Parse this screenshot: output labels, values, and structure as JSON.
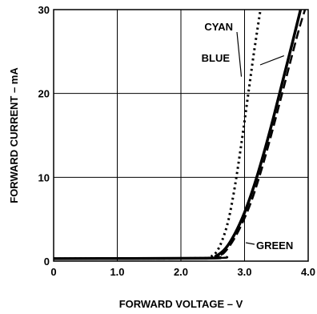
{
  "chart_data": {
    "type": "line",
    "xlabel": "FORWARD VOLTAGE – V",
    "ylabel": "FORWARD CURRENT – mA",
    "xlim": [
      0,
      4.0
    ],
    "ylim": [
      0,
      30
    ],
    "x_ticks": [
      "0",
      "1.0",
      "2.0",
      "3.0",
      "4.0"
    ],
    "y_ticks": [
      "0",
      "10",
      "20",
      "30"
    ],
    "grid": true,
    "legend": "inline labels with leader lines",
    "series": [
      {
        "name": "CYAN",
        "style": "dotted",
        "x": [
          0,
          2.3,
          2.45,
          2.55,
          2.65,
          2.75,
          2.85,
          2.95,
          3.05,
          3.15,
          3.25
        ],
        "y": [
          0.3,
          0.35,
          0.5,
          1.0,
          2.5,
          5.0,
          9.0,
          14.0,
          19.5,
          25.0,
          30.0
        ]
      },
      {
        "name": "BLUE",
        "style": "solid",
        "x": [
          0,
          2.4,
          2.55,
          2.7,
          2.85,
          3.0,
          3.15,
          3.3,
          3.45,
          3.6,
          3.75,
          3.88
        ],
        "y": [
          0.3,
          0.35,
          0.6,
          1.5,
          3.3,
          5.8,
          9.0,
          12.8,
          17.0,
          21.5,
          26.0,
          30.0
        ]
      },
      {
        "name": "GREEN",
        "style": "dashed",
        "x": [
          0,
          2.5,
          2.65,
          2.8,
          2.95,
          3.1,
          3.25,
          3.4,
          3.55,
          3.7,
          3.85,
          3.95
        ],
        "y": [
          0.3,
          0.35,
          0.8,
          2.2,
          4.3,
          7.0,
          10.5,
          14.5,
          18.8,
          23.2,
          27.5,
          30.0
        ]
      }
    ]
  }
}
